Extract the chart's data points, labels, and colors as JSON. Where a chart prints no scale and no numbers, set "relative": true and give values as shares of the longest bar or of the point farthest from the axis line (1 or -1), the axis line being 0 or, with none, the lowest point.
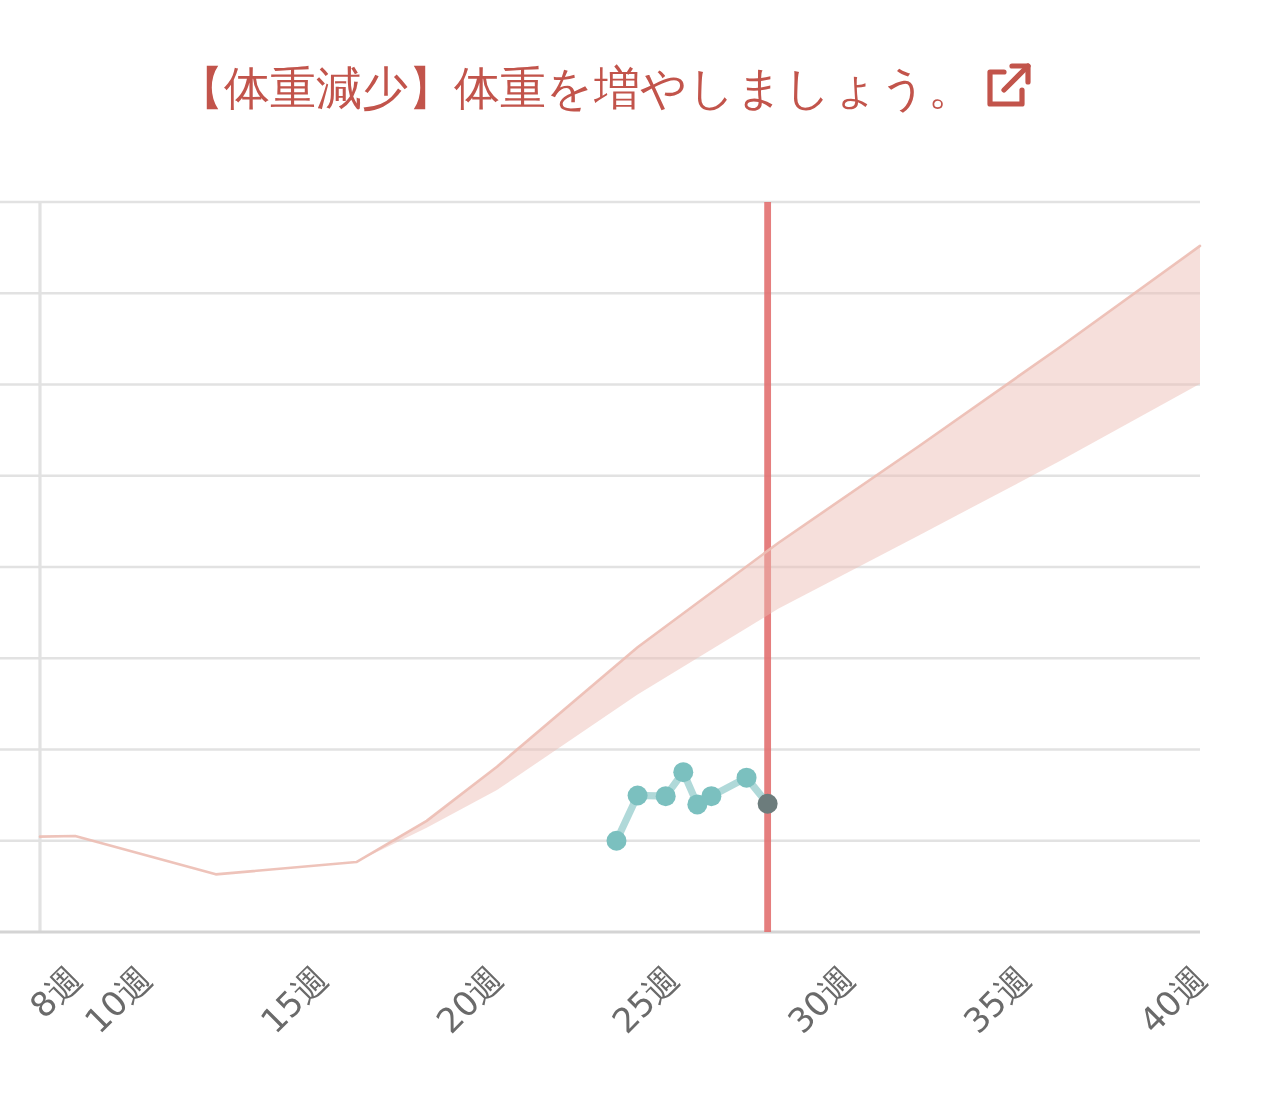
{
  "chart_data": {
    "type": "line",
    "title": "【体重減少】体重を増やしましょう。",
    "relative": true,
    "xlim": [
      7,
      40
    ],
    "xticks": [
      {
        "value": 8,
        "label": "8週"
      },
      {
        "value": 10,
        "label": "10週"
      },
      {
        "value": 15,
        "label": "15週"
      },
      {
        "value": 20,
        "label": "20週"
      },
      {
        "value": 25,
        "label": "25週"
      },
      {
        "value": 30,
        "label": "30週"
      },
      {
        "value": 35,
        "label": "35週"
      },
      {
        "value": 40,
        "label": "40週"
      }
    ],
    "grid": "y",
    "ref_lines": [
      {
        "axis": "x",
        "value": 27.7,
        "color": "#e27070"
      }
    ],
    "series": [
      {
        "color": "#ecbdb3",
        "x": [
          7,
          8,
          12,
          16,
          18,
          20,
          24,
          28,
          32,
          36,
          40
        ],
        "values": [
          0.139,
          0.14,
          0.084,
          0.102,
          0.162,
          0.241,
          0.415,
          0.567,
          0.708,
          0.852,
          1
        ],
        "lower": [
          null,
          null,
          null,
          0.102,
          0.152,
          0.207,
          0.346,
          0.471,
          0.578,
          0.686,
          0.799
        ],
        "upper": [
          null,
          null,
          null,
          0.102,
          0.162,
          0.241,
          0.415,
          0.567,
          0.708,
          0.852,
          1
        ]
      },
      {
        "marker": "circle",
        "color": "#7bc0bf",
        "colors": [
          "#7bc0bf",
          "#7bc0bf",
          "#7bc0bf",
          "#7bc0bf",
          "#7bc0bf",
          "#7bc0bf",
          "#7bc0bf",
          "#6c7c7c"
        ],
        "x": [
          23.4,
          24.0,
          24.8,
          25.3,
          25.7,
          26.1,
          27.1,
          27.7
        ],
        "values": [
          0.133,
          0.199,
          0.198,
          0.233,
          0.186,
          0.198,
          0.225,
          0.187
        ]
      }
    ]
  }
}
